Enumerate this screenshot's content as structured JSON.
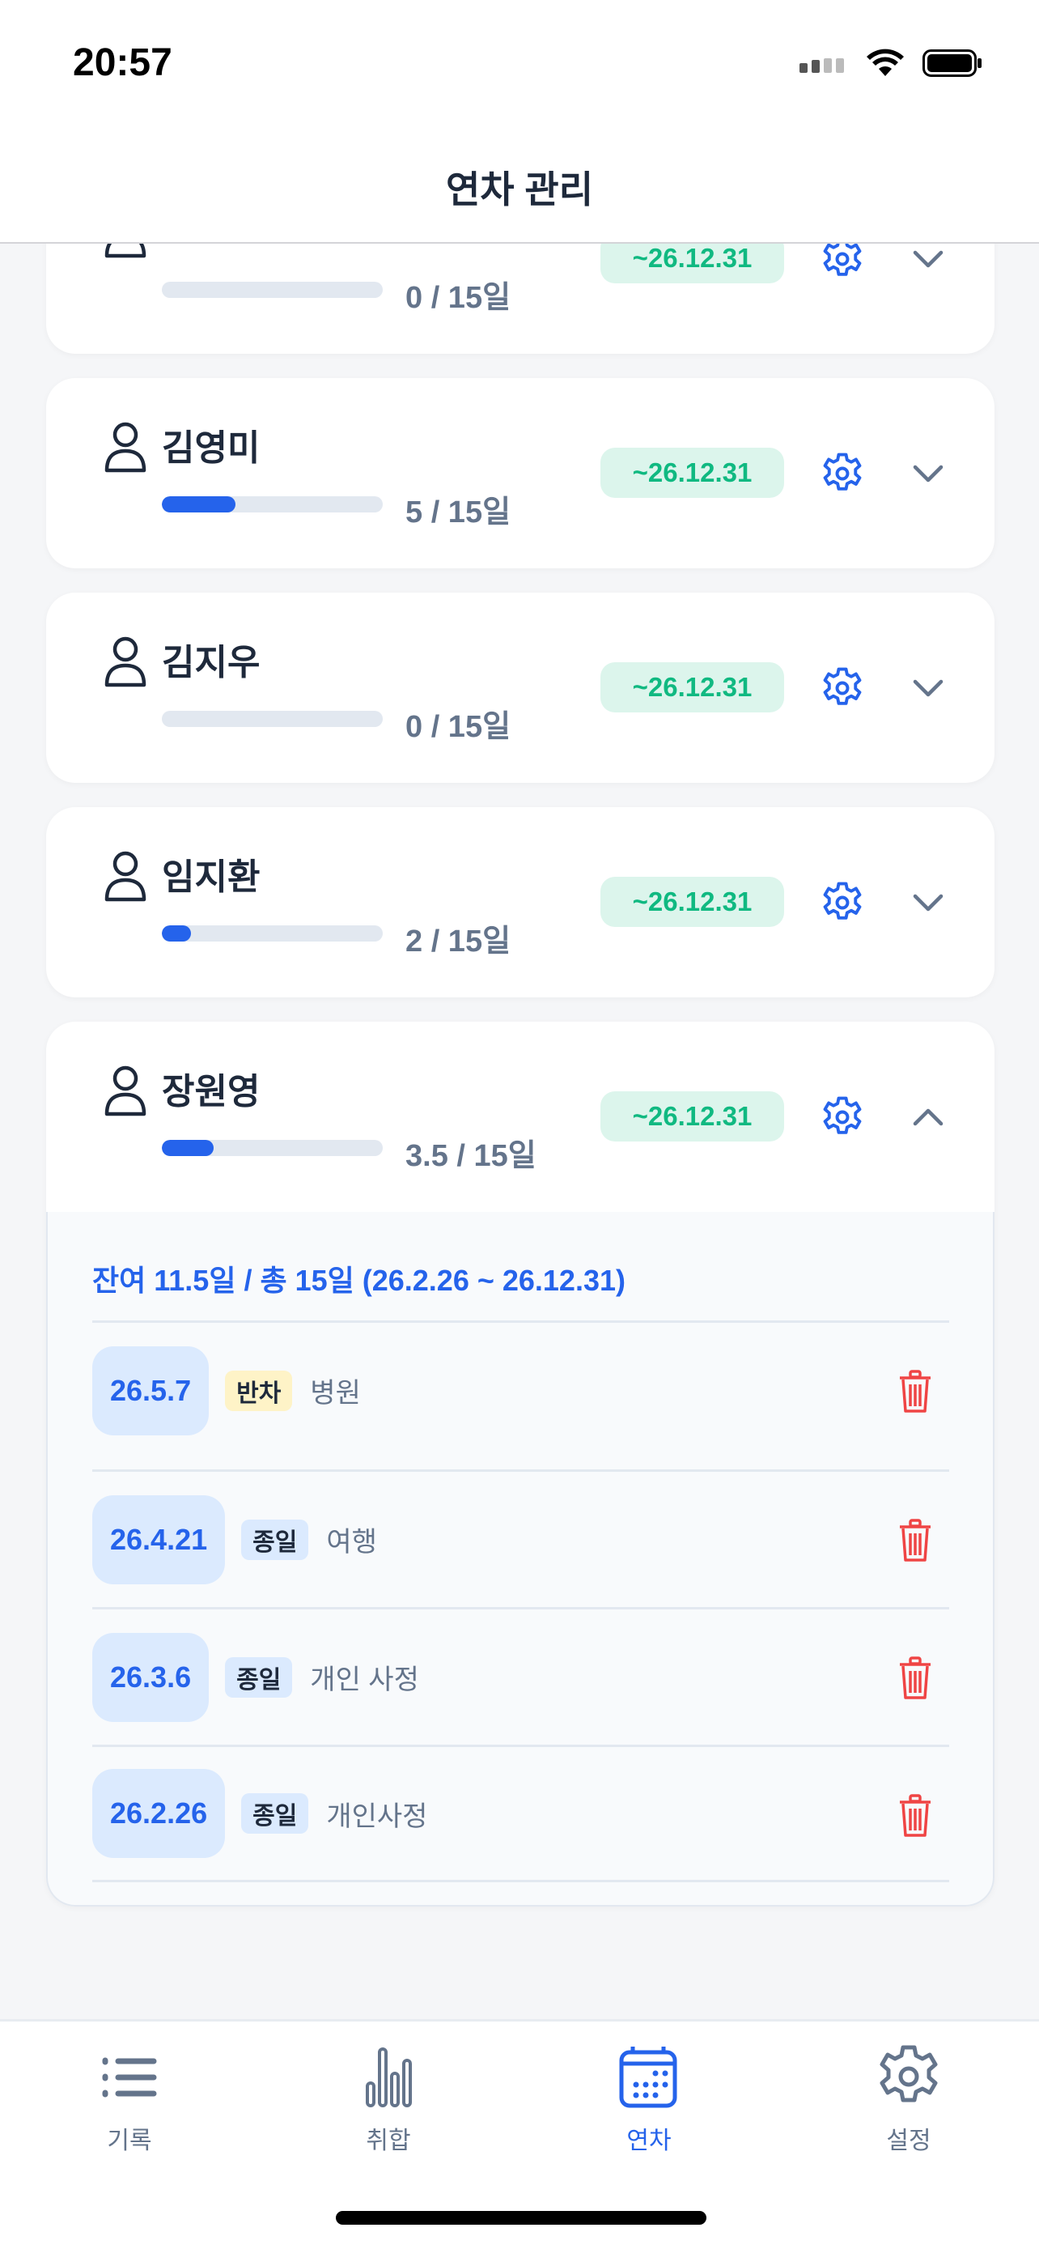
{
  "status_bar": {
    "time": "20:57"
  },
  "header": {
    "title": "연차 관리"
  },
  "employees": [
    {
      "name": "",
      "used": "0 / 15일",
      "progress": 0,
      "expiry": "~26.12.31",
      "expanded": false
    },
    {
      "name": "김영미",
      "used": "5 / 15일",
      "progress": 0.333,
      "expiry": "~26.12.31",
      "expanded": false
    },
    {
      "name": "김지우",
      "used": "0 / 15일",
      "progress": 0,
      "expiry": "~26.12.31",
      "expanded": false
    },
    {
      "name": "임지환",
      "used": "2 / 15일",
      "progress": 0.133,
      "expiry": "~26.12.31",
      "expanded": false
    },
    {
      "name": "장원영",
      "used": "3.5 / 15일",
      "progress": 0.233,
      "expiry": "~26.12.31",
      "expanded": true
    }
  ],
  "detail": {
    "summary": "잔여 11.5일 / 총 15일 (26.2.26 ~ 26.12.31)",
    "entries": [
      {
        "date": "26.5.7",
        "type": "반차",
        "reason": "병원",
        "type_color": "#fef3c7"
      },
      {
        "date": "26.4.21",
        "type": "종일",
        "reason": "여행",
        "type_color": "#dbeafe"
      },
      {
        "date": "26.3.6",
        "type": "종일",
        "reason": "개인 사정",
        "type_color": "#dbeafe"
      },
      {
        "date": "26.2.26",
        "type": "종일",
        "reason": "개인사정",
        "type_color": "#dbeafe"
      }
    ]
  },
  "tabs": [
    {
      "label": "기록",
      "icon": "list-icon",
      "active": false
    },
    {
      "label": "취합",
      "icon": "bar-chart-icon",
      "active": false
    },
    {
      "label": "연차",
      "icon": "calendar-icon",
      "active": true
    },
    {
      "label": "설정",
      "icon": "gear-icon",
      "active": false
    }
  ],
  "colors": {
    "accent": "#2563eb",
    "expiry": "#10b981",
    "delete": "#ef4444"
  }
}
